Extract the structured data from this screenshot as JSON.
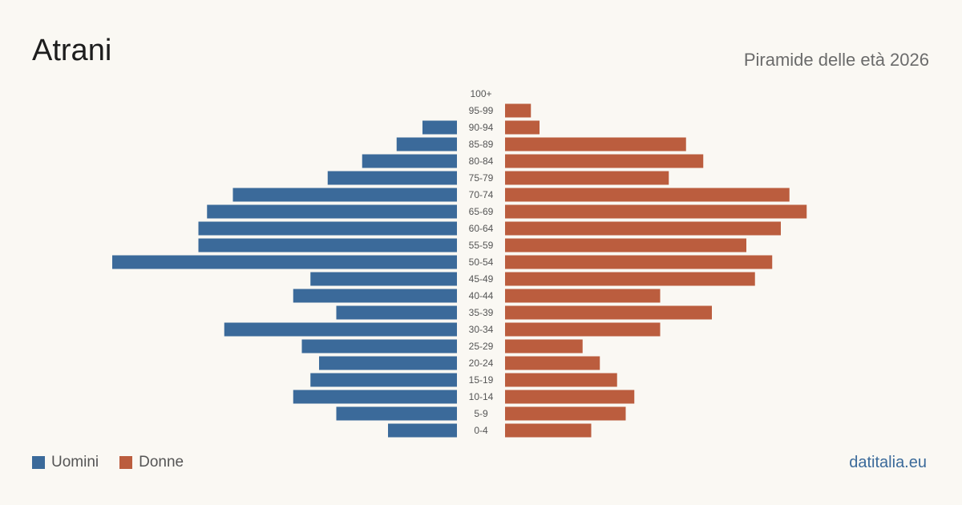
{
  "header": {
    "title": "Atrani",
    "subtitle": "Piramide delle età 2026"
  },
  "legend": {
    "men_label": "Uomini",
    "women_label": "Donne"
  },
  "footer": {
    "brand": "datitalia.eu"
  },
  "colors": {
    "men": "#3b6a9a",
    "women": "#bb5d3e"
  },
  "chart_data": {
    "type": "bar",
    "orientation": "horizontal-pyramid",
    "categories": [
      "100+",
      "95-99",
      "90-94",
      "85-89",
      "80-84",
      "75-79",
      "70-74",
      "65-69",
      "60-64",
      "55-59",
      "50-54",
      "45-49",
      "40-44",
      "35-39",
      "30-34",
      "25-29",
      "20-24",
      "15-19",
      "10-14",
      "5-9",
      "0-4"
    ],
    "series": [
      {
        "name": "Uomini",
        "values": [
          0,
          0,
          4,
          7,
          11,
          15,
          26,
          29,
          30,
          30,
          40,
          17,
          19,
          14,
          27,
          18,
          16,
          17,
          19,
          14,
          8
        ]
      },
      {
        "name": "Donne",
        "values": [
          0,
          3,
          4,
          21,
          23,
          19,
          33,
          35,
          32,
          28,
          31,
          29,
          18,
          24,
          18,
          9,
          11,
          13,
          15,
          14,
          10
        ]
      }
    ],
    "grid": false,
    "legend_position": "bottom-left"
  }
}
